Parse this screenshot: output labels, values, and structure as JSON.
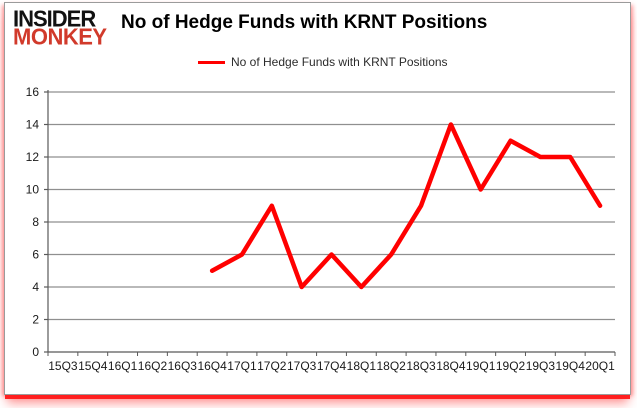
{
  "logo": {
    "line1": "INSIDER",
    "line2": "MONKEY"
  },
  "header": {
    "title": "No of Hedge Funds with KRNT Positions"
  },
  "legend": {
    "label": "No of Hedge Funds with KRNT Positions",
    "line_color": "#ff0000"
  },
  "chart_data": {
    "type": "line",
    "title": "No of Hedge Funds with KRNT Positions",
    "categories": [
      "15Q3",
      "15Q4",
      "16Q1",
      "16Q2",
      "16Q3",
      "16Q4",
      "17Q1",
      "17Q2",
      "17Q3",
      "17Q4",
      "18Q1",
      "18Q2",
      "18Q3",
      "18Q4",
      "19Q1",
      "19Q2",
      "19Q3",
      "19Q4",
      "20Q1"
    ],
    "series": [
      {
        "name": "No of Hedge Funds with KRNT Positions",
        "color": "#ff0000",
        "values": [
          null,
          null,
          null,
          null,
          null,
          5,
          6,
          9,
          4,
          6,
          4,
          6,
          9,
          14,
          10,
          13,
          12,
          12,
          9
        ]
      }
    ],
    "xlabel": "",
    "ylabel": "",
    "ylim": [
      0,
      16
    ],
    "yticks": [
      0,
      2,
      4,
      6,
      8,
      10,
      12,
      14,
      16
    ],
    "grid": true,
    "legend_position": "top"
  },
  "colors": {
    "line_red": "#ff0000",
    "logo_red": "#d13a2b",
    "gridline": "#8f8f8f",
    "axis": "#595959",
    "tick_text": "#1a1a1a"
  }
}
